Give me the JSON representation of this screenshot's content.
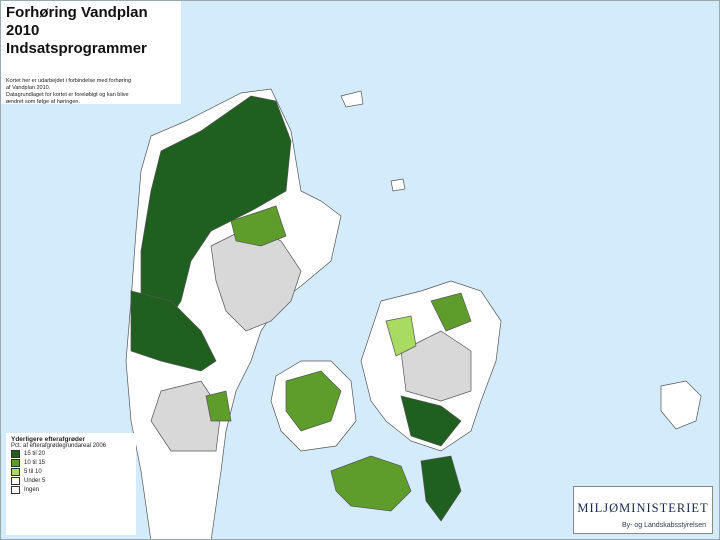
{
  "header": {
    "title": "Forhøring Vandplan 2010",
    "subtitle": "Indsatsprogrammer"
  },
  "note": [
    "Kortet her er udarbejdet i forbindelse med forhøring",
    "af Vandplan 2010.",
    "Datagrundlaget for kortet er foreløbigt og kan blive",
    "ændret som følge af høringen."
  ],
  "legend": {
    "title": "Yderligere efterafgrøder",
    "subtitle": "Pct. af efterafgrødegrundareal 2006",
    "items": [
      {
        "label": "15 til 20",
        "color": "#1f5f1f"
      },
      {
        "label": "10 til 15",
        "color": "#5e9c2c"
      },
      {
        "label": "5 til 10",
        "color": "#a9da62"
      },
      {
        "label": "Under 5",
        "color": "#ffffff"
      },
      {
        "label": "Ingen",
        "color": "#ffffff"
      }
    ]
  },
  "logo": {
    "name": "MILJØMINISTERIET",
    "agency": "By- og Landskabsstyrelsen"
  }
}
